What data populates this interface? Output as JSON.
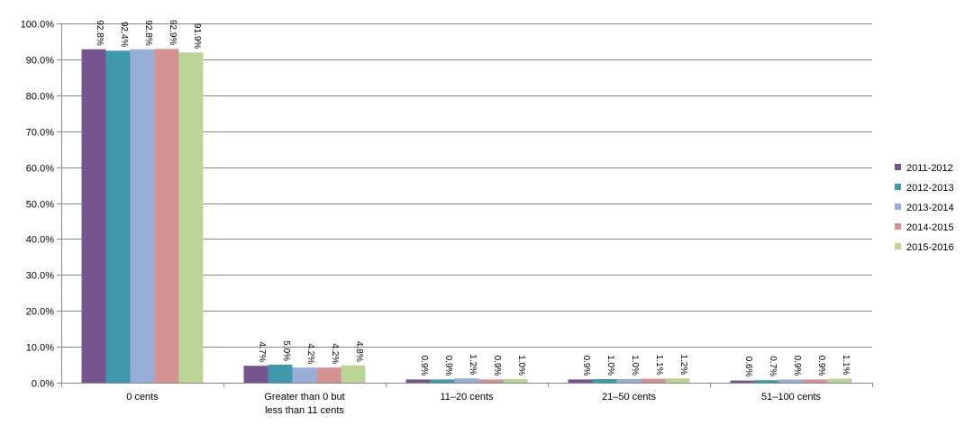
{
  "chart_data": {
    "type": "bar",
    "categories": [
      [
        "0 cents"
      ],
      [
        "Greater than 0 but",
        "less than 11 cents"
      ],
      [
        "11–20 cents"
      ],
      [
        "21–50 cents"
      ],
      [
        "51–100 cents"
      ]
    ],
    "series": [
      {
        "name": "2011-2012",
        "color": "#76558f",
        "values": [
          92.8,
          4.7,
          0.9,
          0.9,
          0.6
        ],
        "labels": [
          "92.8%",
          "4.7%",
          "0.9%",
          "0.9%",
          "0.6%"
        ]
      },
      {
        "name": "2012-2013",
        "color": "#4098ab",
        "values": [
          92.4,
          5.0,
          0.9,
          1.0,
          0.7
        ],
        "labels": [
          "92.4%",
          "5.0%",
          "0.9%",
          "1.0%",
          "0.7%"
        ]
      },
      {
        "name": "2013-2014",
        "color": "#98aed6",
        "values": [
          92.8,
          4.2,
          1.2,
          1.0,
          0.9
        ],
        "labels": [
          "92.8%",
          "4.2%",
          "1.2%",
          "1.0%",
          "0.9%"
        ]
      },
      {
        "name": "2014-2015",
        "color": "#d49292",
        "values": [
          92.9,
          4.2,
          0.9,
          1.1,
          0.9
        ],
        "labels": [
          "92.9%",
          "4.2%",
          "0.9%",
          "1.1%",
          "0.9%"
        ]
      },
      {
        "name": "2015-2016",
        "color": "#bcd596",
        "values": [
          91.9,
          4.8,
          1.0,
          1.2,
          1.1
        ],
        "labels": [
          "91.9%",
          "4.8%",
          "1.0%",
          "1.2%",
          "1.1%"
        ]
      }
    ],
    "y_ticks": [
      "0.0%",
      "10.0%",
      "20.0%",
      "30.0%",
      "40.0%",
      "50.0%",
      "60.0%",
      "70.0%",
      "80.0%",
      "90.0%",
      "100.0%"
    ],
    "ylim": [
      0,
      100
    ],
    "grid": true,
    "legend_position": "right"
  }
}
